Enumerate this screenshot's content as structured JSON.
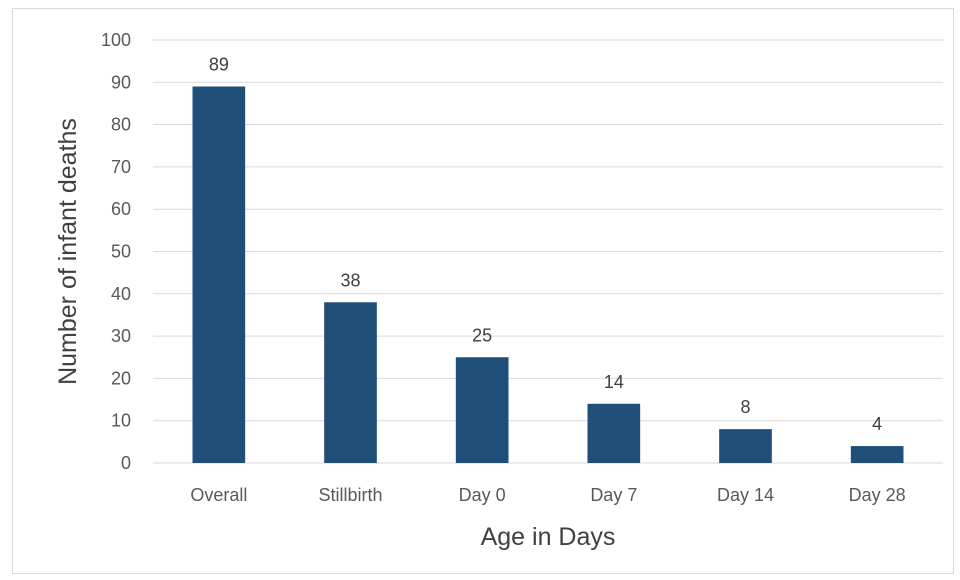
{
  "chart_data": {
    "type": "bar",
    "categories": [
      "Overall",
      "Stillbirth",
      "Day 0",
      "Day 7",
      "Day 14",
      "Day 28"
    ],
    "values": [
      89,
      38,
      25,
      14,
      8,
      4
    ],
    "title": "",
    "xlabel": "Age in Days",
    "ylabel": "Number of infant deaths",
    "ylim": [
      0,
      100
    ],
    "yticks": [
      0,
      10,
      20,
      30,
      40,
      50,
      60,
      70,
      80,
      90,
      100
    ],
    "grid": true,
    "legend": "none",
    "data_labels": true,
    "bar_color": "#1f4e79",
    "gridline_color": "#d9d9d9"
  }
}
